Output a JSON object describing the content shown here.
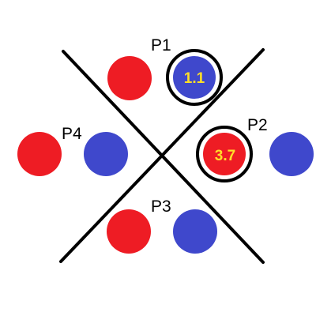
{
  "colors": {
    "background": "#ffffff",
    "line": "#000000",
    "red": "#ee1c24",
    "blue": "#3f48cc",
    "value_text": "#ffde28",
    "highlight_ring": "#000000"
  },
  "players": [
    {
      "label": "P1",
      "tokens": [
        {
          "color": "red",
          "value": "",
          "highlighted": false
        },
        {
          "color": "blue",
          "value": "1.1",
          "highlighted": true
        }
      ]
    },
    {
      "label": "P2",
      "tokens": [
        {
          "color": "red",
          "value": "3.7",
          "highlighted": true
        },
        {
          "color": "blue",
          "value": "",
          "highlighted": false
        }
      ]
    },
    {
      "label": "P3",
      "tokens": [
        {
          "color": "red",
          "value": "",
          "highlighted": false
        },
        {
          "color": "blue",
          "value": "",
          "highlighted": false
        }
      ]
    },
    {
      "label": "P4",
      "tokens": [
        {
          "color": "red",
          "value": "",
          "highlighted": false
        },
        {
          "color": "blue",
          "value": "",
          "highlighted": false
        }
      ]
    }
  ]
}
